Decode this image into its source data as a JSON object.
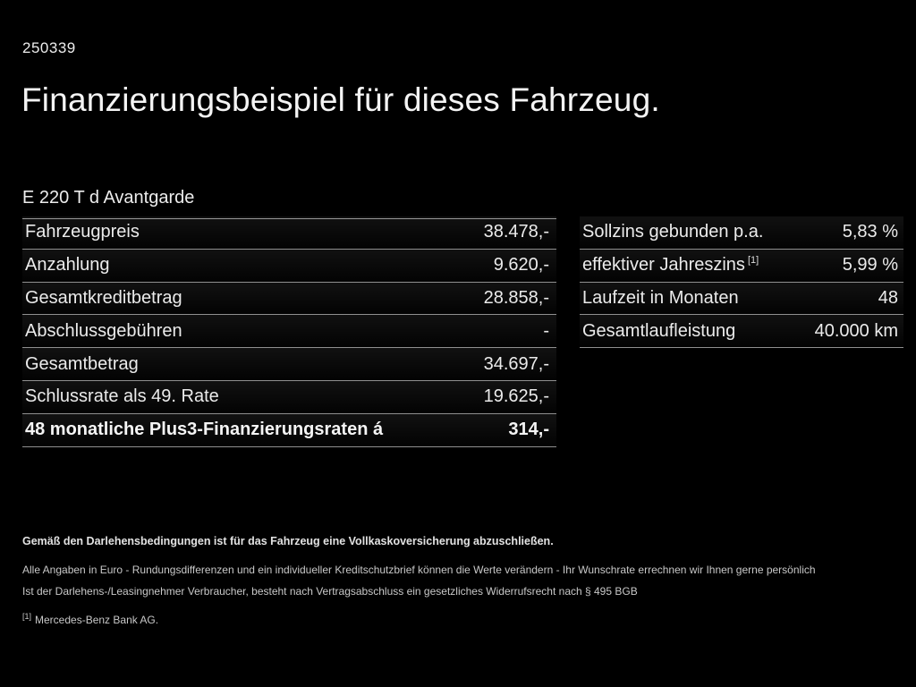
{
  "page": {
    "doc_id": "250339",
    "title": "Finanzierungsbeispiel für dieses Fahrzeug.",
    "vehicle_name": "E 220 T d Avantgarde"
  },
  "left_table": {
    "rows": [
      {
        "label": "Fahrzeugpreis",
        "value": "38.478,-",
        "bold": false
      },
      {
        "label": "Anzahlung",
        "value": "9.620,-",
        "bold": false
      },
      {
        "label": "Gesamtkreditbetrag",
        "value": "28.858,-",
        "bold": false
      },
      {
        "label": "Abschlussgebühren",
        "value": "-",
        "bold": false
      },
      {
        "label": "Gesamtbetrag",
        "value": "34.697,-",
        "bold": false
      },
      {
        "label": "Schlussrate als 49. Rate",
        "value": "19.625,-",
        "bold": false
      },
      {
        "label": "48 monatliche Plus3-Finanzierungsraten á",
        "value": "314,-",
        "bold": true
      }
    ]
  },
  "right_table": {
    "rows": [
      {
        "label": "Sollzins gebunden p.a.",
        "value": "5,83 %",
        "bold": false
      },
      {
        "label": "effektiver Jahreszins",
        "superscript": "[1]",
        "value": "5,99 %",
        "bold": false
      },
      {
        "label": "Laufzeit in Monaten",
        "value": "48",
        "bold": false
      },
      {
        "label": "Gesamtlaufleistung",
        "value": "40.000 km",
        "bold": false
      }
    ]
  },
  "fineprint": {
    "line_bold": "Gemäß den Darlehensbedingungen ist für das Fahrzeug eine Vollkaskoversicherung abzuschließen.",
    "line2": "Alle Angaben in Euro - Rundungsdifferenzen und ein individueller Kreditschutzbrief können die Werte verändern - Ihr Wunschrate errechnen wir Ihnen gerne persönlich",
    "line3": "Ist der Darlehens-/Leasingnehmer Verbraucher, besteht nach Vertragsabschluss ein gesetzliches Widerrufsrecht nach § 495 BGB",
    "footnote_marker": "[1]",
    "footnote_text": "Mercedes-Benz Bank AG."
  },
  "colors": {
    "background": "#000000",
    "text": "#f2f2f2",
    "separator": "#8f8f8f"
  }
}
